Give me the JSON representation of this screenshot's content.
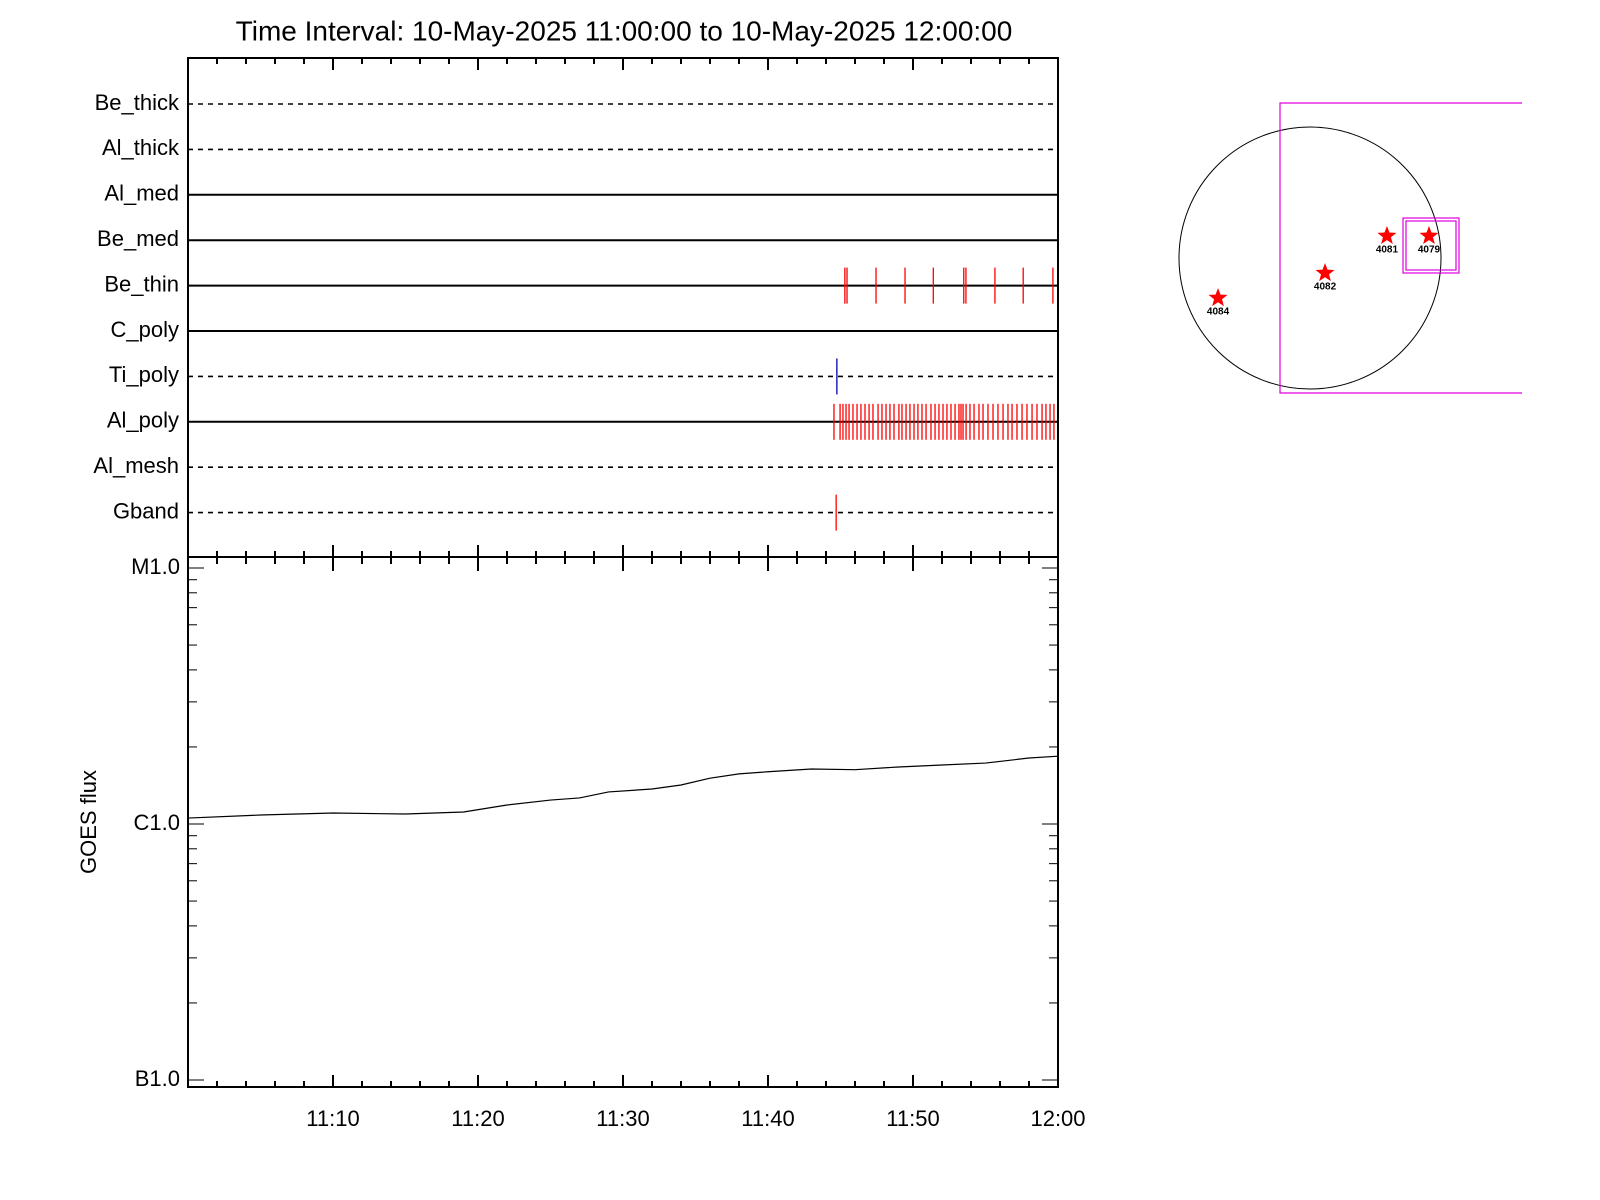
{
  "chart_data": [
    {
      "type": "timeline",
      "title": "Time Interval: 10-May-2025 11:00:00 to 10-May-2025 12:00:00",
      "categories": [
        "Be_thick",
        "Al_thick",
        "Al_med",
        "Be_med",
        "Be_thin",
        "C_poly",
        "Ti_poly",
        "Al_poly",
        "Al_mesh",
        "Gband"
      ],
      "line_styles": [
        "dashed",
        "dashed",
        "solid",
        "solid",
        "solid",
        "solid",
        "dashed",
        "solid",
        "dashed",
        "dashed"
      ],
      "event_colors": [
        "#ff0000",
        "#ff0000",
        "#ff0000",
        "#ff0000",
        "#ff0000",
        "#ff0000",
        "#0000aa",
        "#ff0000",
        "#ff0000",
        "#ff0000"
      ],
      "events": [
        [],
        [],
        [],
        [],
        [
          45.3,
          45.45,
          47.45,
          49.45,
          51.4,
          53.5,
          53.65,
          55.65,
          57.6,
          59.65
        ],
        [],
        [
          44.75
        ],
        [
          44.55,
          44.97,
          45.17,
          45.38,
          45.59,
          45.86,
          46.14,
          46.41,
          46.69,
          46.97,
          47.24,
          47.59,
          47.86,
          48.14,
          48.41,
          48.69,
          49.03,
          49.24,
          49.52,
          49.79,
          50.07,
          50.34,
          50.62,
          50.9,
          51.24,
          51.52,
          51.79,
          52.07,
          52.34,
          52.62,
          52.9,
          53.17,
          53.31,
          53.45,
          53.66,
          53.93,
          54.21,
          54.55,
          54.83,
          55.17,
          55.52,
          55.86,
          56.21,
          56.55,
          56.83,
          57.17,
          57.52,
          57.86,
          58.21,
          58.55,
          58.9,
          59.17,
          59.45,
          59.72
        ],
        [],
        [
          44.7
        ]
      ],
      "xlim": [
        0,
        60
      ],
      "xticks": [
        10,
        20,
        30,
        40,
        50,
        60
      ],
      "xminorticks": [
        2,
        4,
        6,
        8,
        12,
        14,
        16,
        18,
        22,
        24,
        26,
        28,
        32,
        34,
        36,
        38,
        42,
        44,
        46,
        48,
        52,
        54,
        56,
        58
      ]
    },
    {
      "type": "line",
      "ylabel": "GOES flux",
      "log_y": true,
      "color": "#000000",
      "x": [
        0,
        5,
        10,
        15,
        19,
        22,
        25,
        27,
        29,
        32,
        34,
        36,
        38,
        40,
        43,
        46,
        49,
        52,
        55,
        58,
        60
      ],
      "values": [
        1.055e-06,
        1.084e-06,
        1.104e-06,
        1.094e-06,
        1.114e-06,
        1.186e-06,
        1.24e-06,
        1.264e-06,
        1.334e-06,
        1.37e-06,
        1.42e-06,
        1.51e-06,
        1.57e-06,
        1.6e-06,
        1.64e-06,
        1.63e-06,
        1.67e-06,
        1.7e-06,
        1.73e-06,
        1.81e-06,
        1.84e-06
      ],
      "ylim": [
        1e-07,
        1e-05
      ],
      "yticks": [
        {
          "value": 1e-07,
          "label": "B1.0"
        },
        {
          "value": 1e-06,
          "label": "C1.0"
        },
        {
          "value": 1e-05,
          "label": "M1.0"
        }
      ],
      "yminorticks": [
        2e-07,
        3e-07,
        4e-07,
        5e-07,
        6e-07,
        7e-07,
        8e-07,
        9e-07,
        2e-06,
        3e-06,
        4e-06,
        5e-06,
        6e-06,
        7e-06,
        8e-06,
        9e-06
      ],
      "xlim": [
        0,
        60
      ],
      "xticks": [
        {
          "value": 10,
          "label": "11:10"
        },
        {
          "value": 20,
          "label": "11:20"
        },
        {
          "value": 30,
          "label": "11:30"
        },
        {
          "value": 40,
          "label": "11:40"
        },
        {
          "value": 50,
          "label": "11:50"
        },
        {
          "value": 60,
          "label": "12:00"
        }
      ],
      "xminorticks": [
        2,
        4,
        6,
        8,
        12,
        14,
        16,
        18,
        22,
        24,
        26,
        28,
        32,
        34,
        36,
        38,
        42,
        44,
        46,
        48,
        52,
        54,
        56,
        58
      ]
    },
    {
      "type": "map",
      "labels": [
        "4084",
        "4082",
        "4081",
        "4079"
      ],
      "x": [
        -667,
        109,
        558,
        863
      ],
      "y": [
        -290,
        -109,
        160,
        160
      ],
      "color": "#ff0000"
    }
  ]
}
